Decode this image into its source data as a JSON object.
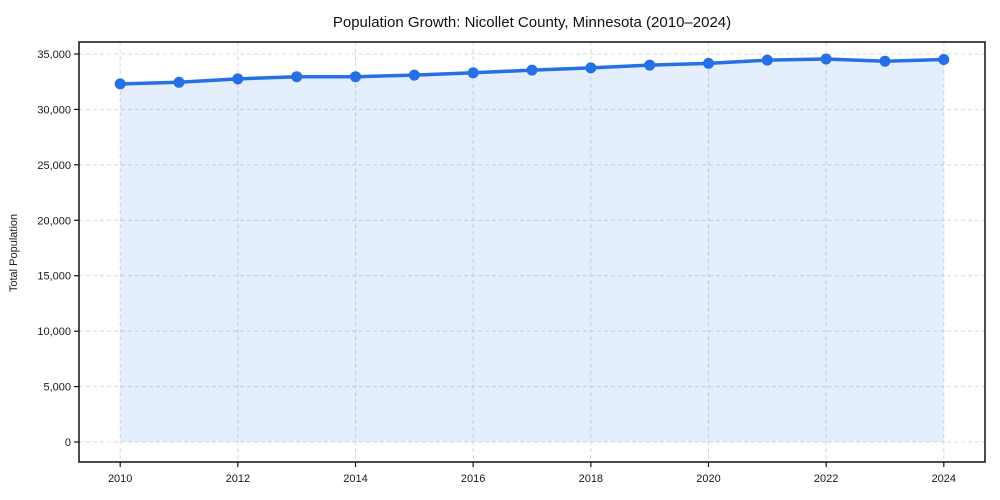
{
  "chart_data": {
    "type": "area",
    "title": "Population Growth: Nicollet County, Minnesota (2010–2024)",
    "xlabel": "",
    "ylabel": "Total Population",
    "series_name": "Total Population",
    "x": [
      2010,
      2011,
      2012,
      2013,
      2014,
      2015,
      2016,
      2017,
      2018,
      2019,
      2020,
      2021,
      2022,
      2023,
      2024
    ],
    "values": [
      32300,
      32450,
      32750,
      32950,
      32950,
      33100,
      33300,
      33550,
      33750,
      34000,
      34150,
      34450,
      34550,
      34350,
      34500
    ],
    "xlim": [
      2009.3,
      2024.7
    ],
    "ylim": [
      0,
      35000
    ],
    "xticks": [
      2010,
      2012,
      2014,
      2016,
      2018,
      2020,
      2022,
      2024
    ],
    "xtick_labels": [
      "2010",
      "2012",
      "2014",
      "2016",
      "2018",
      "2020",
      "2022",
      "2024"
    ],
    "yticks": [
      0,
      5000,
      10000,
      15000,
      20000,
      25000,
      30000,
      35000
    ],
    "ytick_labels": [
      "0",
      "5,000",
      "10,000",
      "15,000",
      "20,000",
      "25,000",
      "30,000",
      "35,000"
    ],
    "grid": "dashed",
    "legend": "none",
    "marker": "circle",
    "colors": {
      "line": "#2470e4",
      "fill": "#2470e4",
      "fill_opacity": 0.12,
      "grid": "#d9d9d9",
      "spine": "#111111",
      "tick_text": "#1a1a1a",
      "background": "#ffffff"
    }
  }
}
